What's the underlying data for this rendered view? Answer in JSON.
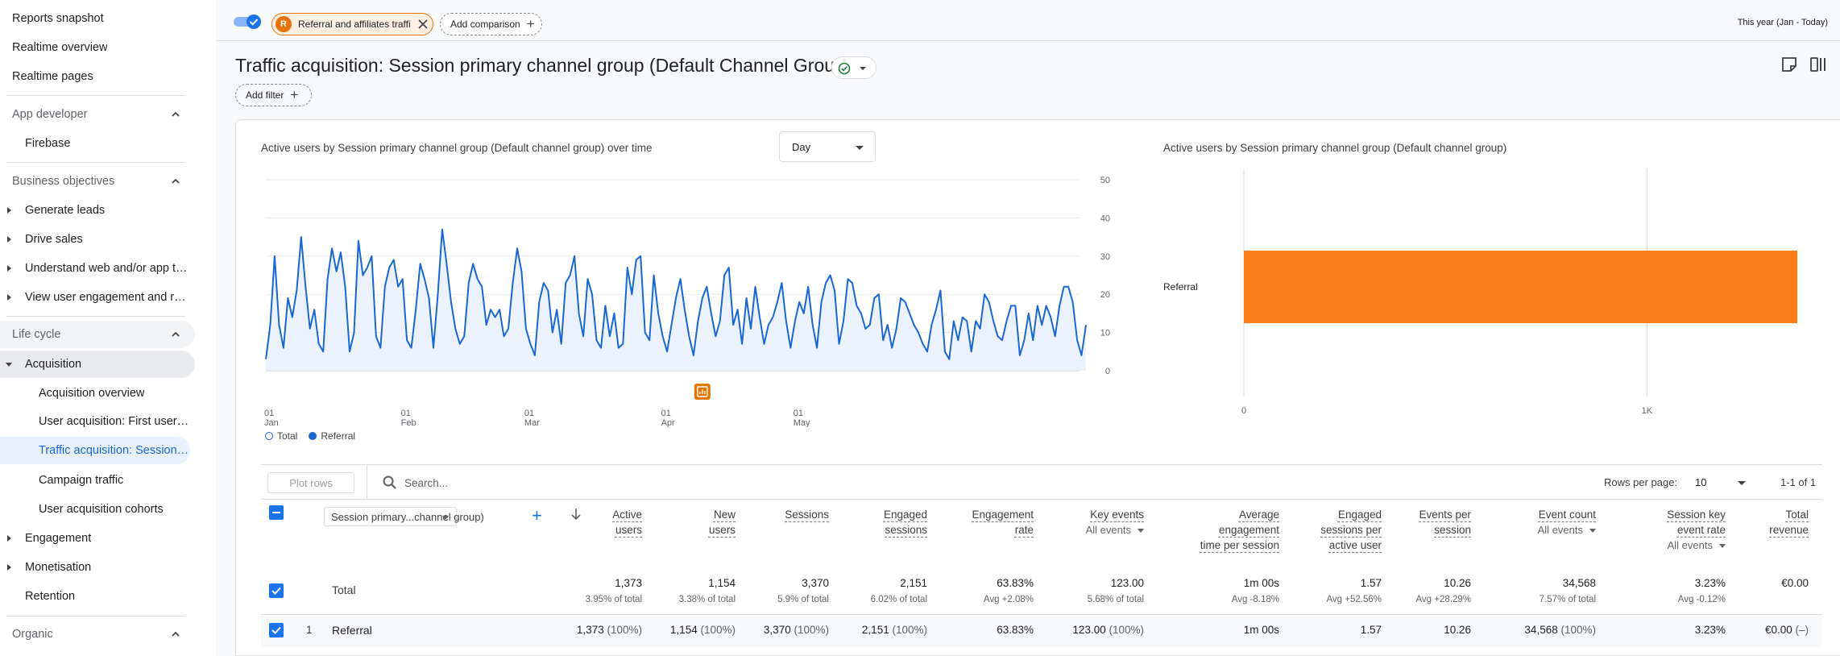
{
  "sidebar": {
    "top_items": [
      "Reports snapshot",
      "Realtime overview",
      "Realtime pages"
    ],
    "app_developer": {
      "title": "App developer",
      "items": [
        "Firebase"
      ]
    },
    "business_objectives": {
      "title": "Business objectives",
      "items": [
        "Generate leads",
        "Drive sales",
        "Understand web and/or app traffic",
        "View user engagement and retention"
      ]
    },
    "life_cycle": {
      "title": "Life cycle",
      "acquisition": "Acquisition",
      "acq_items": [
        "Acquisition overview",
        "User acquisition: First user primary channel group",
        "Traffic acquisition: Session primary channel group",
        "Campaign traffic",
        "User acquisition cohorts"
      ],
      "rest": [
        "Engagement",
        "Monetisation",
        "Retention"
      ]
    },
    "organic": {
      "title": "Organic"
    }
  },
  "topbar": {
    "comparison_badge": "R",
    "comparison_chip": "Referral and affiliates traffic",
    "add_comparison": "Add comparison",
    "date_range": "This year (Jan - Today)"
  },
  "page": {
    "title": "Traffic acquisition: Session primary channel group (Default Channel Group)",
    "add_filter": "Add filter"
  },
  "line_chart": {
    "title": "Active users by Session primary channel group (Default channel group) over time",
    "granularity": "Day",
    "legend": [
      "Total",
      "Referral"
    ]
  },
  "bar_chart_panel": {
    "title": "Active users by Session primary channel group (Default channel group)"
  },
  "colors": {
    "accent": "#1a73e8",
    "referral": "#fa7b17",
    "line": "#1967d2"
  },
  "chart_data": [
    {
      "type": "line",
      "title": "Active users by Session primary channel group (Default channel group) over time",
      "x_ticks": [
        {
          "day": "01",
          "month": "Jan"
        },
        {
          "day": "01",
          "month": "Feb"
        },
        {
          "day": "01",
          "month": "Mar"
        },
        {
          "day": "01",
          "month": "Apr"
        },
        {
          "day": "01",
          "month": "May"
        }
      ],
      "y_ticks": [
        "50",
        "40",
        "30",
        "20",
        "10",
        "0"
      ],
      "ylim": [
        0,
        50
      ],
      "grid": true,
      "series": [
        {
          "name": "Referral",
          "values": [
            3,
            12,
            30,
            12,
            6,
            19,
            14,
            21,
            35,
            22,
            11,
            16,
            7,
            5,
            24,
            32,
            26,
            31,
            22,
            5,
            10,
            34,
            25,
            27,
            30,
            9,
            6,
            22,
            27,
            29,
            22,
            24,
            8,
            6,
            16,
            28,
            24,
            19,
            6,
            20,
            37,
            28,
            18,
            11,
            7,
            9,
            23,
            28,
            24,
            22,
            12,
            16,
            14,
            16,
            9,
            11,
            23,
            32,
            26,
            11,
            7,
            4,
            18,
            23,
            21,
            10,
            16,
            7,
            23,
            25,
            30,
            15,
            9,
            24,
            20,
            8,
            6,
            17,
            9,
            15,
            6,
            7,
            27,
            20,
            29,
            30,
            10,
            8,
            25,
            15,
            9,
            5,
            12,
            19,
            24,
            16,
            9,
            4,
            13,
            19,
            22,
            15,
            9,
            13,
            25,
            27,
            12,
            16,
            7,
            19,
            11,
            22,
            14,
            7,
            12,
            14,
            18,
            23,
            13,
            6,
            13,
            18,
            15,
            22,
            12,
            6,
            18,
            23,
            25,
            21,
            7,
            13,
            24,
            23,
            17,
            15,
            11,
            12,
            19,
            20,
            8,
            12,
            6,
            11,
            19,
            18,
            15,
            12,
            10,
            7,
            5,
            12,
            16,
            21,
            5,
            3,
            13,
            8,
            14,
            13,
            5,
            13,
            11,
            20,
            18,
            13,
            9,
            8,
            13,
            17,
            17,
            4,
            8,
            15,
            8,
            17,
            12,
            17,
            14,
            9,
            17,
            22,
            22,
            18,
            8,
            4,
            12
          ]
        },
        {
          "name": "Total",
          "values": [
            3,
            12,
            30,
            12,
            6,
            19,
            14,
            21,
            35,
            22,
            11,
            16,
            7,
            5,
            24,
            32,
            26,
            31,
            22,
            5,
            10,
            34,
            25,
            27,
            30,
            9,
            6,
            22,
            27,
            29,
            22,
            24,
            8,
            6,
            16,
            28,
            24,
            19,
            6,
            20,
            37,
            28,
            18,
            11,
            7,
            9,
            23,
            28,
            24,
            22,
            12,
            16,
            14,
            16,
            9,
            11,
            23,
            32,
            26,
            11,
            7,
            4,
            18,
            23,
            21,
            10,
            16,
            7,
            23,
            25,
            30,
            15,
            9,
            24,
            20,
            8,
            6,
            17,
            9,
            15,
            6,
            7,
            27,
            20,
            29,
            30,
            10,
            8,
            25,
            15,
            9,
            5,
            12,
            19,
            24,
            16,
            9,
            4,
            13,
            19,
            22,
            15,
            9,
            13,
            25,
            27,
            12,
            16,
            7,
            19,
            11,
            22,
            14,
            7,
            12,
            14,
            18,
            23,
            13,
            6,
            13,
            18,
            15,
            22,
            12,
            6,
            18,
            23,
            25,
            21,
            7,
            13,
            24,
            23,
            17,
            15,
            11,
            12,
            19,
            20,
            8,
            12,
            6,
            11,
            19,
            18,
            15,
            12,
            10,
            7,
            5,
            12,
            16,
            21,
            5,
            3,
            13,
            8,
            14,
            13,
            5,
            13,
            11,
            20,
            18,
            13,
            9,
            8,
            13,
            17,
            17,
            4,
            8,
            15,
            8,
            17,
            12,
            17,
            14,
            9,
            17,
            22,
            22,
            18,
            8,
            4,
            12
          ]
        }
      ]
    },
    {
      "type": "bar",
      "orientation": "horizontal",
      "title": "Active users by Session primary channel group (Default channel group)",
      "categories": [
        "Referral"
      ],
      "values": [
        1373
      ],
      "x_ticks": [
        "0",
        "1K"
      ],
      "xlim": [
        0,
        1373
      ],
      "grid": true
    }
  ],
  "table": {
    "plot_rows": "Plot rows",
    "search_placeholder": "Search...",
    "rows_per_page_label": "Rows per page:",
    "rows_per_page": "10",
    "pager": "1-1 of 1",
    "dimension": "Session primary...channel group)",
    "headers": [
      {
        "l1": "Active",
        "l2": "users"
      },
      {
        "l1": "New",
        "l2": "users"
      },
      {
        "l1": "Sessions",
        "l2": ""
      },
      {
        "l1": "Engaged",
        "l2": "sessions"
      },
      {
        "l1": "Engagement",
        "l2": "rate"
      },
      {
        "l1": "Key events",
        "sub": "All events"
      },
      {
        "l1": "Average",
        "l2": "engagement",
        "l3": "time per session"
      },
      {
        "l1": "Engaged",
        "l2": "sessions per",
        "l3": "active user"
      },
      {
        "l1": "Events per",
        "l2": "session"
      },
      {
        "l1": "Event count",
        "sub": "All events"
      },
      {
        "l1": "Session key",
        "l2": "event rate",
        "sub": "All events"
      },
      {
        "l1": "Total",
        "l2": "revenue"
      }
    ],
    "total": {
      "label": "Total",
      "values": [
        "1,373",
        "1,154",
        "3,370",
        "2,151",
        "63.83%",
        "123.00",
        "1m 00s",
        "1.57",
        "10.26",
        "34,568",
        "3.23%",
        "€0.00"
      ],
      "subs": [
        "3.95% of total",
        "3.38% of total",
        "5.9% of total",
        "6.02% of total",
        "Avg +2.08%",
        "5.68% of total",
        "Avg -8.18%",
        "Avg +52.56%",
        "Avg +28.29%",
        "7.57% of total",
        "Avg -0.12%",
        ""
      ]
    },
    "rows": [
      {
        "index": "1",
        "name": "Referral",
        "values": [
          "1,373",
          "1,154",
          "3,370",
          "2,151",
          "63.83%",
          "123.00",
          "1m 00s",
          "1.57",
          "10.26",
          "34,568",
          "3.23%",
          "€0.00"
        ],
        "pcts": [
          "(100%)",
          "(100%)",
          "(100%)",
          "(100%)",
          "",
          "(100%)",
          "",
          "",
          "",
          "(100%)",
          "",
          "(–)"
        ]
      }
    ]
  }
}
